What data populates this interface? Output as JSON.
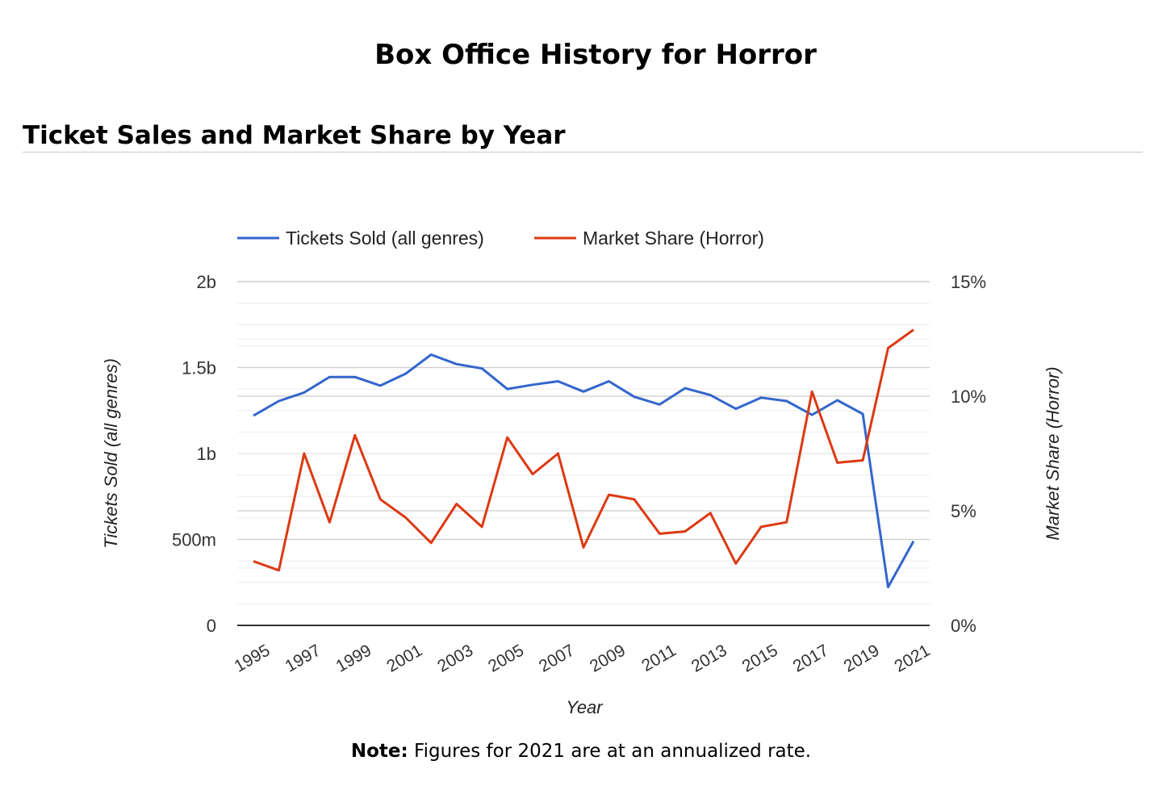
{
  "page": {
    "title": "Box Office History for Horror",
    "section_title": "Ticket Sales and Market Share by Year",
    "note_label": "Note:",
    "note_text": "Figures for 2021 are at an annualized rate."
  },
  "chart_data": {
    "type": "line",
    "title": "",
    "xlabel": "Year",
    "ylabel_left": "Tickets Sold (all genres)",
    "ylabel_right": "Market Share (Horror)",
    "x": [
      1995,
      1996,
      1997,
      1998,
      1999,
      2000,
      2001,
      2002,
      2003,
      2004,
      2005,
      2006,
      2007,
      2008,
      2009,
      2010,
      2011,
      2012,
      2013,
      2014,
      2015,
      2016,
      2017,
      2018,
      2019,
      2020,
      2021
    ],
    "x_tick_labels": [
      "1995",
      "1997",
      "1999",
      "2001",
      "2003",
      "2005",
      "2007",
      "2009",
      "2011",
      "2013",
      "2015",
      "2017",
      "2019",
      "2021"
    ],
    "y_left_ticks": [
      0,
      500000000,
      1000000000,
      1500000000,
      2000000000
    ],
    "y_left_tick_labels": [
      "0",
      "500m",
      "1b",
      "1.5b",
      "2b"
    ],
    "y_left_lim": [
      0,
      2000000000
    ],
    "y_right_ticks": [
      0,
      5,
      10,
      15
    ],
    "y_right_tick_labels": [
      "0%",
      "5%",
      "10%",
      "15%"
    ],
    "y_right_lim": [
      0,
      15
    ],
    "grid": true,
    "legend_position": "top",
    "series": [
      {
        "name": "Tickets Sold (all genres)",
        "axis": "left",
        "color": "#3366cc",
        "values": [
          1220000000,
          1305000000,
          1355000000,
          1445000000,
          1445000000,
          1395000000,
          1465000000,
          1575000000,
          1520000000,
          1495000000,
          1375000000,
          1400000000,
          1420000000,
          1360000000,
          1420000000,
          1330000000,
          1285000000,
          1380000000,
          1340000000,
          1260000000,
          1325000000,
          1305000000,
          1225000000,
          1310000000,
          1230000000,
          223000000,
          490000000
        ]
      },
      {
        "name": "Market Share (Horror)",
        "axis": "right",
        "color": "#dc3912",
        "values": [
          2.8,
          2.4,
          7.5,
          4.5,
          8.3,
          5.5,
          4.7,
          3.6,
          5.3,
          4.3,
          8.2,
          6.6,
          7.5,
          3.4,
          5.7,
          5.5,
          4.0,
          4.1,
          4.9,
          2.7,
          4.3,
          4.5,
          10.2,
          7.1,
          7.2,
          12.1,
          12.9
        ]
      }
    ]
  }
}
